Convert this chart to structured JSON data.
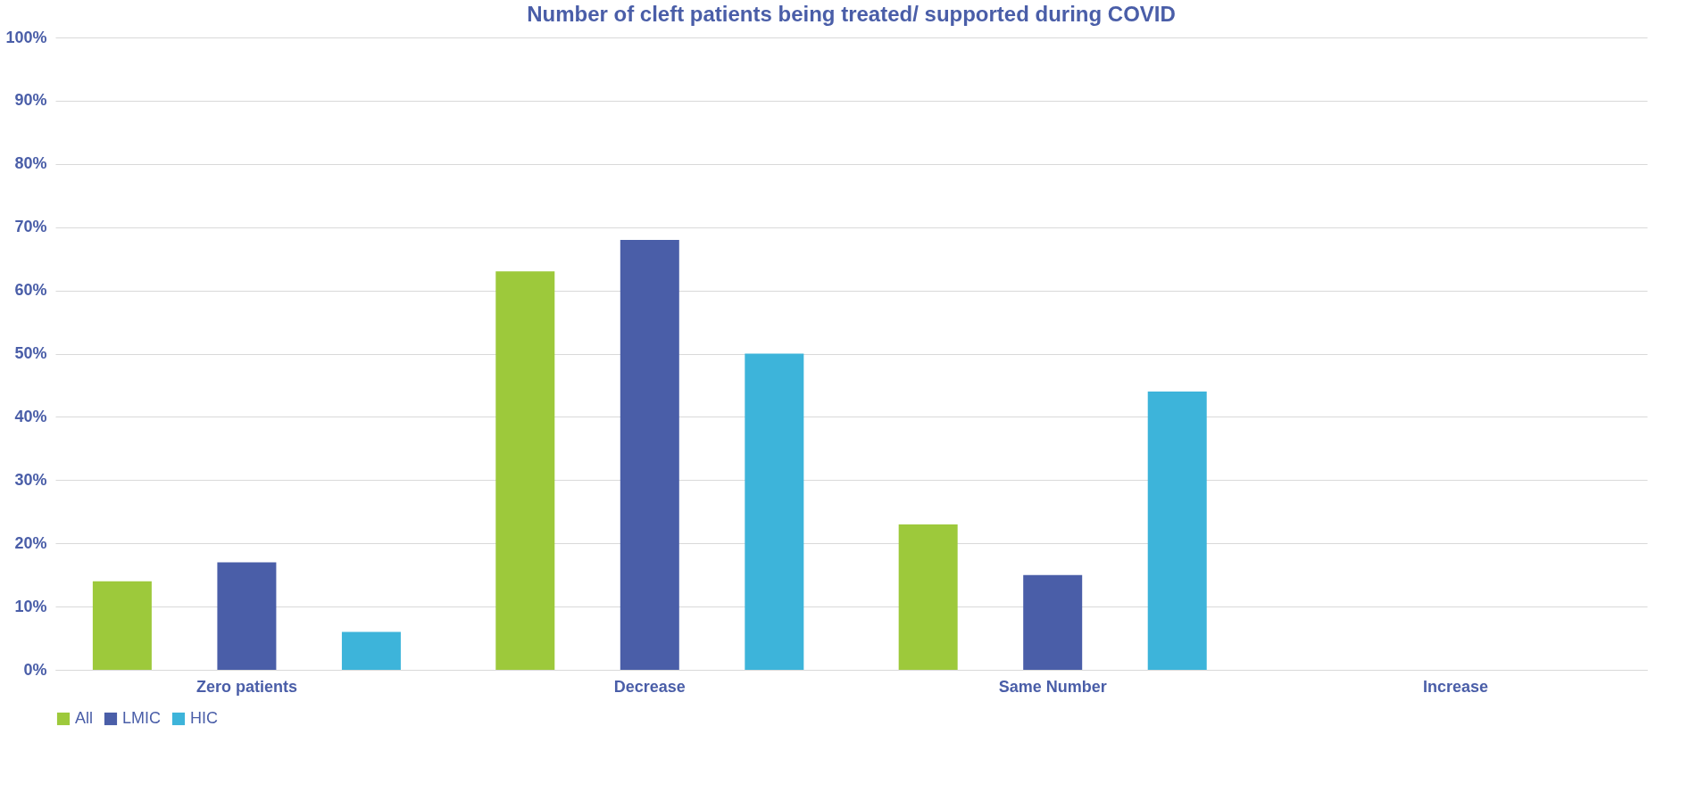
{
  "chart_data": {
    "type": "bar",
    "title": "Number of cleft patients being treated/ supported during COVID",
    "categories": [
      "Zero patients",
      "Decrease",
      "Same Number",
      "Increase"
    ],
    "series": [
      {
        "name": "All",
        "color": "#9dc93b",
        "values": [
          14,
          63,
          23,
          0
        ]
      },
      {
        "name": "LMIC",
        "color": "#4a5ea8",
        "values": [
          17,
          68,
          15,
          0
        ]
      },
      {
        "name": "HIC",
        "color": "#3db4da",
        "values": [
          6,
          50,
          44,
          0
        ]
      }
    ],
    "ylim": [
      0,
      100
    ],
    "yticks": [
      {
        "value": 0,
        "label": "0%"
      },
      {
        "value": 10,
        "label": "10%"
      },
      {
        "value": 20,
        "label": "20%"
      },
      {
        "value": 30,
        "label": "30%"
      },
      {
        "value": 40,
        "label": "40%"
      },
      {
        "value": 50,
        "label": "50%"
      },
      {
        "value": 60,
        "label": "60%"
      },
      {
        "value": 70,
        "label": "70%"
      },
      {
        "value": 80,
        "label": "80%"
      },
      {
        "value": 90,
        "label": "90%"
      },
      {
        "value": 100,
        "label": "100%"
      }
    ],
    "grid": "y",
    "legend": "bottom"
  }
}
